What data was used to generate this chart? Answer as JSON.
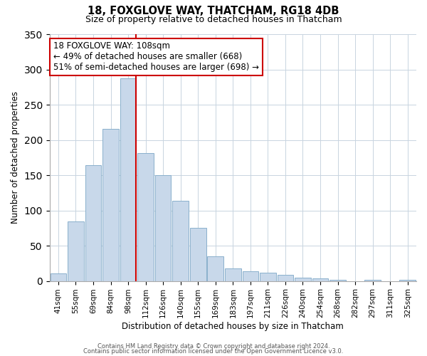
{
  "title": "18, FOXGLOVE WAY, THATCHAM, RG18 4DB",
  "subtitle": "Size of property relative to detached houses in Thatcham",
  "xlabel": "Distribution of detached houses by size in Thatcham",
  "ylabel": "Number of detached properties",
  "bar_labels": [
    "41sqm",
    "55sqm",
    "69sqm",
    "84sqm",
    "98sqm",
    "112sqm",
    "126sqm",
    "140sqm",
    "155sqm",
    "169sqm",
    "183sqm",
    "197sqm",
    "211sqm",
    "226sqm",
    "240sqm",
    "254sqm",
    "268sqm",
    "282sqm",
    "297sqm",
    "311sqm",
    "325sqm"
  ],
  "bar_values": [
    11,
    84,
    164,
    216,
    287,
    181,
    150,
    114,
    75,
    35,
    18,
    14,
    12,
    9,
    5,
    4,
    2,
    0,
    2,
    0,
    2
  ],
  "bar_color": "#c8d8ea",
  "bar_edge_color": "#8ab0cc",
  "highlight_bar_index": 4,
  "highlight_color": "#cc0000",
  "ylim": [
    0,
    350
  ],
  "yticks": [
    0,
    50,
    100,
    150,
    200,
    250,
    300,
    350
  ],
  "annotation_line1": "18 FOXGLOVE WAY: 108sqm",
  "annotation_line2": "← 49% of detached houses are smaller (668)",
  "annotation_line3": "51% of semi-detached houses are larger (698) →",
  "footer_line1": "Contains HM Land Registry data © Crown copyright and database right 2024.",
  "footer_line2": "Contains public sector information licensed under the Open Government Licence v3.0.",
  "bg_color": "#ffffff",
  "grid_color": "#c8d4e0"
}
